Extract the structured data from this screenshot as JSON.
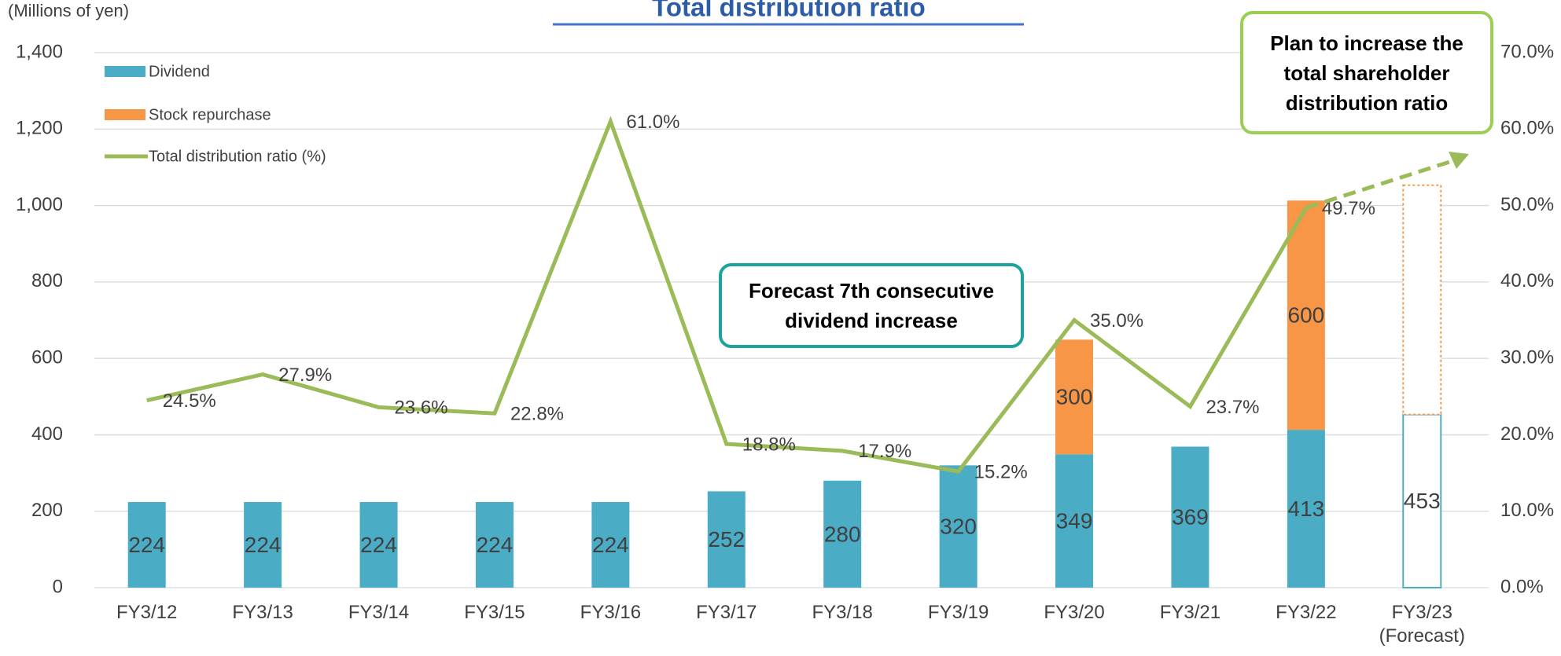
{
  "chart_data": {
    "type": "bar",
    "title": "Total distribution ratio",
    "y_axis_label": "(Millions of yen)",
    "categories": [
      "FY3/12",
      "FY3/13",
      "FY3/14",
      "FY3/15",
      "FY3/16",
      "FY3/17",
      "FY3/18",
      "FY3/19",
      "FY3/20",
      "FY3/21",
      "FY3/22",
      "FY3/23 (Forecast)"
    ],
    "forecast_style": "outline",
    "series": [
      {
        "name": "Dividend",
        "type": "bar",
        "color": "#4bacc6",
        "values": [
          224,
          224,
          224,
          224,
          224,
          252,
          280,
          320,
          349,
          369,
          413,
          453
        ]
      },
      {
        "name": "Stock repurchase",
        "type": "bar",
        "color": "#f79646",
        "values": [
          null,
          null,
          null,
          null,
          null,
          null,
          null,
          null,
          300,
          null,
          600,
          600
        ],
        "value_labels": [
          null,
          null,
          null,
          null,
          null,
          null,
          null,
          null,
          "300",
          null,
          "600",
          null
        ]
      },
      {
        "name": "Total distribution ratio (%)",
        "type": "line",
        "axis": "y2",
        "color": "#9bbb59",
        "values": [
          24.5,
          27.9,
          23.6,
          22.8,
          61.0,
          18.8,
          17.9,
          15.2,
          35.0,
          23.7,
          49.7,
          null
        ],
        "value_labels": [
          "24.5%",
          "27.9%",
          "23.6%",
          "22.8%",
          "61.0%",
          "18.8%",
          "17.9%",
          "15.2%",
          "35.0%",
          "23.7%",
          "49.7%",
          null
        ]
      }
    ],
    "ylim": [
      0,
      1400
    ],
    "yticks": [
      0,
      200,
      400,
      600,
      800,
      {
        "value": 1000,
        "label": "1,000"
      },
      {
        "value": 1200,
        "label": "1,200"
      },
      {
        "value": 1400,
        "label": "1,400"
      }
    ],
    "y2lim": [
      0,
      70
    ],
    "y2ticks": [
      {
        "value": 0,
        "label": "0.0%"
      },
      {
        "value": 10,
        "label": "10.0%"
      },
      {
        "value": 20,
        "label": "20.0%"
      },
      {
        "value": 30,
        "label": "30.0%"
      },
      {
        "value": 40,
        "label": "40.0%"
      },
      {
        "value": 50,
        "label": "50.0%"
      },
      {
        "value": 60,
        "label": "60.0%"
      },
      {
        "value": 70,
        "label": "70.0%"
      }
    ],
    "grid": true,
    "legend": "top-left",
    "annotations": [
      {
        "lines": [
          "Forecast 7th consecutive",
          "dividend increase"
        ],
        "color": "#1ba39c"
      },
      {
        "lines": [
          "Plan to increase the",
          "total shareholder",
          "distribution ratio"
        ],
        "color": "#9bcf53"
      }
    ]
  }
}
